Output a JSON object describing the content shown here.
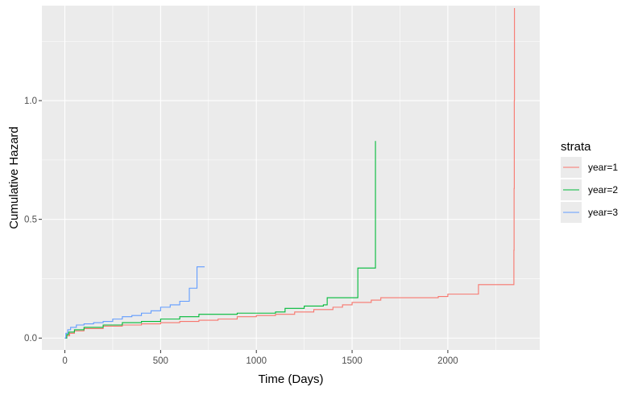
{
  "chart_data": {
    "type": "line",
    "step": true,
    "title": "",
    "xlabel": "Time (Days)",
    "ylabel": "Cumulative Hazard",
    "xlim": [
      -120,
      2480
    ],
    "ylim": [
      -0.05,
      1.4
    ],
    "xticks": [
      0,
      500,
      1000,
      1500,
      2000
    ],
    "xtick_labels": [
      "0",
      "500",
      "1000",
      "1500",
      "2000"
    ],
    "yticks": [
      0.0,
      0.5,
      1.0
    ],
    "ytick_labels": [
      "0.0",
      "0.5",
      "1.0"
    ],
    "grid": true,
    "panel_background": "#EBEBEB",
    "legend": {
      "title": "strata",
      "position": "right"
    },
    "series": [
      {
        "name": "year=1",
        "color": "#F8766D",
        "x": [
          0,
          10,
          25,
          50,
          100,
          200,
          300,
          400,
          500,
          600,
          700,
          800,
          900,
          1000,
          1100,
          1200,
          1300,
          1400,
          1450,
          1500,
          1600,
          1650,
          1800,
          1950,
          2000,
          2160,
          2340,
          2345,
          2346,
          2347,
          2348
        ],
        "y": [
          0.0,
          0.01,
          0.02,
          0.03,
          0.04,
          0.05,
          0.055,
          0.06,
          0.065,
          0.07,
          0.075,
          0.08,
          0.09,
          0.095,
          0.1,
          0.11,
          0.12,
          0.13,
          0.14,
          0.15,
          0.16,
          0.17,
          0.17,
          0.175,
          0.185,
          0.225,
          0.225,
          0.37,
          0.63,
          1.0,
          1.39
        ]
      },
      {
        "name": "year=2",
        "color": "#00BA38",
        "x": [
          0,
          10,
          20,
          50,
          100,
          200,
          300,
          400,
          500,
          600,
          700,
          800,
          900,
          1000,
          1100,
          1150,
          1250,
          1350,
          1370,
          1530,
          1620,
          1622
        ],
        "y": [
          0.0,
          0.015,
          0.025,
          0.035,
          0.045,
          0.055,
          0.065,
          0.07,
          0.08,
          0.09,
          0.1,
          0.1,
          0.105,
          0.105,
          0.11,
          0.125,
          0.135,
          0.14,
          0.17,
          0.295,
          0.295,
          0.83
        ]
      },
      {
        "name": "year=3",
        "color": "#619CFF",
        "x": [
          0,
          5,
          15,
          30,
          60,
          100,
          150,
          200,
          250,
          300,
          350,
          400,
          450,
          500,
          550,
          600,
          650,
          665,
          690,
          730
        ],
        "y": [
          0.0,
          0.02,
          0.035,
          0.045,
          0.055,
          0.06,
          0.065,
          0.07,
          0.08,
          0.09,
          0.095,
          0.105,
          0.115,
          0.13,
          0.14,
          0.155,
          0.21,
          0.21,
          0.3,
          0.3
        ]
      }
    ]
  }
}
